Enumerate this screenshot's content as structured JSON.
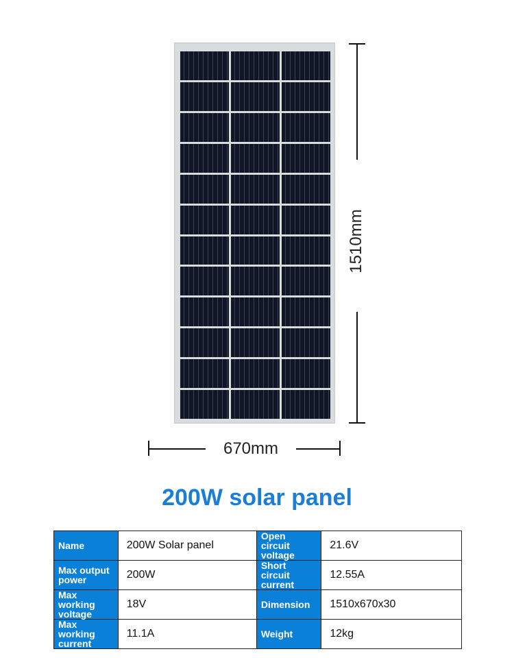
{
  "dimensions": {
    "height": "1510mm",
    "width": "670mm"
  },
  "title": "200W solar panel",
  "panel": {
    "columns": 3,
    "rows": 12
  },
  "colors": {
    "accent": "#0b80d8",
    "title": "#1a7fd4"
  },
  "specs": [
    [
      {
        "key": "Name",
        "value": "200W Solar panel"
      },
      {
        "key": "Open circuit voltage",
        "value": "21.6V"
      }
    ],
    [
      {
        "key": "Max output power",
        "value": "200W"
      },
      {
        "key": "Short circuit current",
        "value": "12.55A"
      }
    ],
    [
      {
        "key": "Max working voltage",
        "value": "18V"
      },
      {
        "key": "Dimension",
        "value": "1510x670x30"
      }
    ],
    [
      {
        "key": "Max working current",
        "value": "11.1A"
      },
      {
        "key": "Weight",
        "value": "12kg"
      }
    ]
  ]
}
